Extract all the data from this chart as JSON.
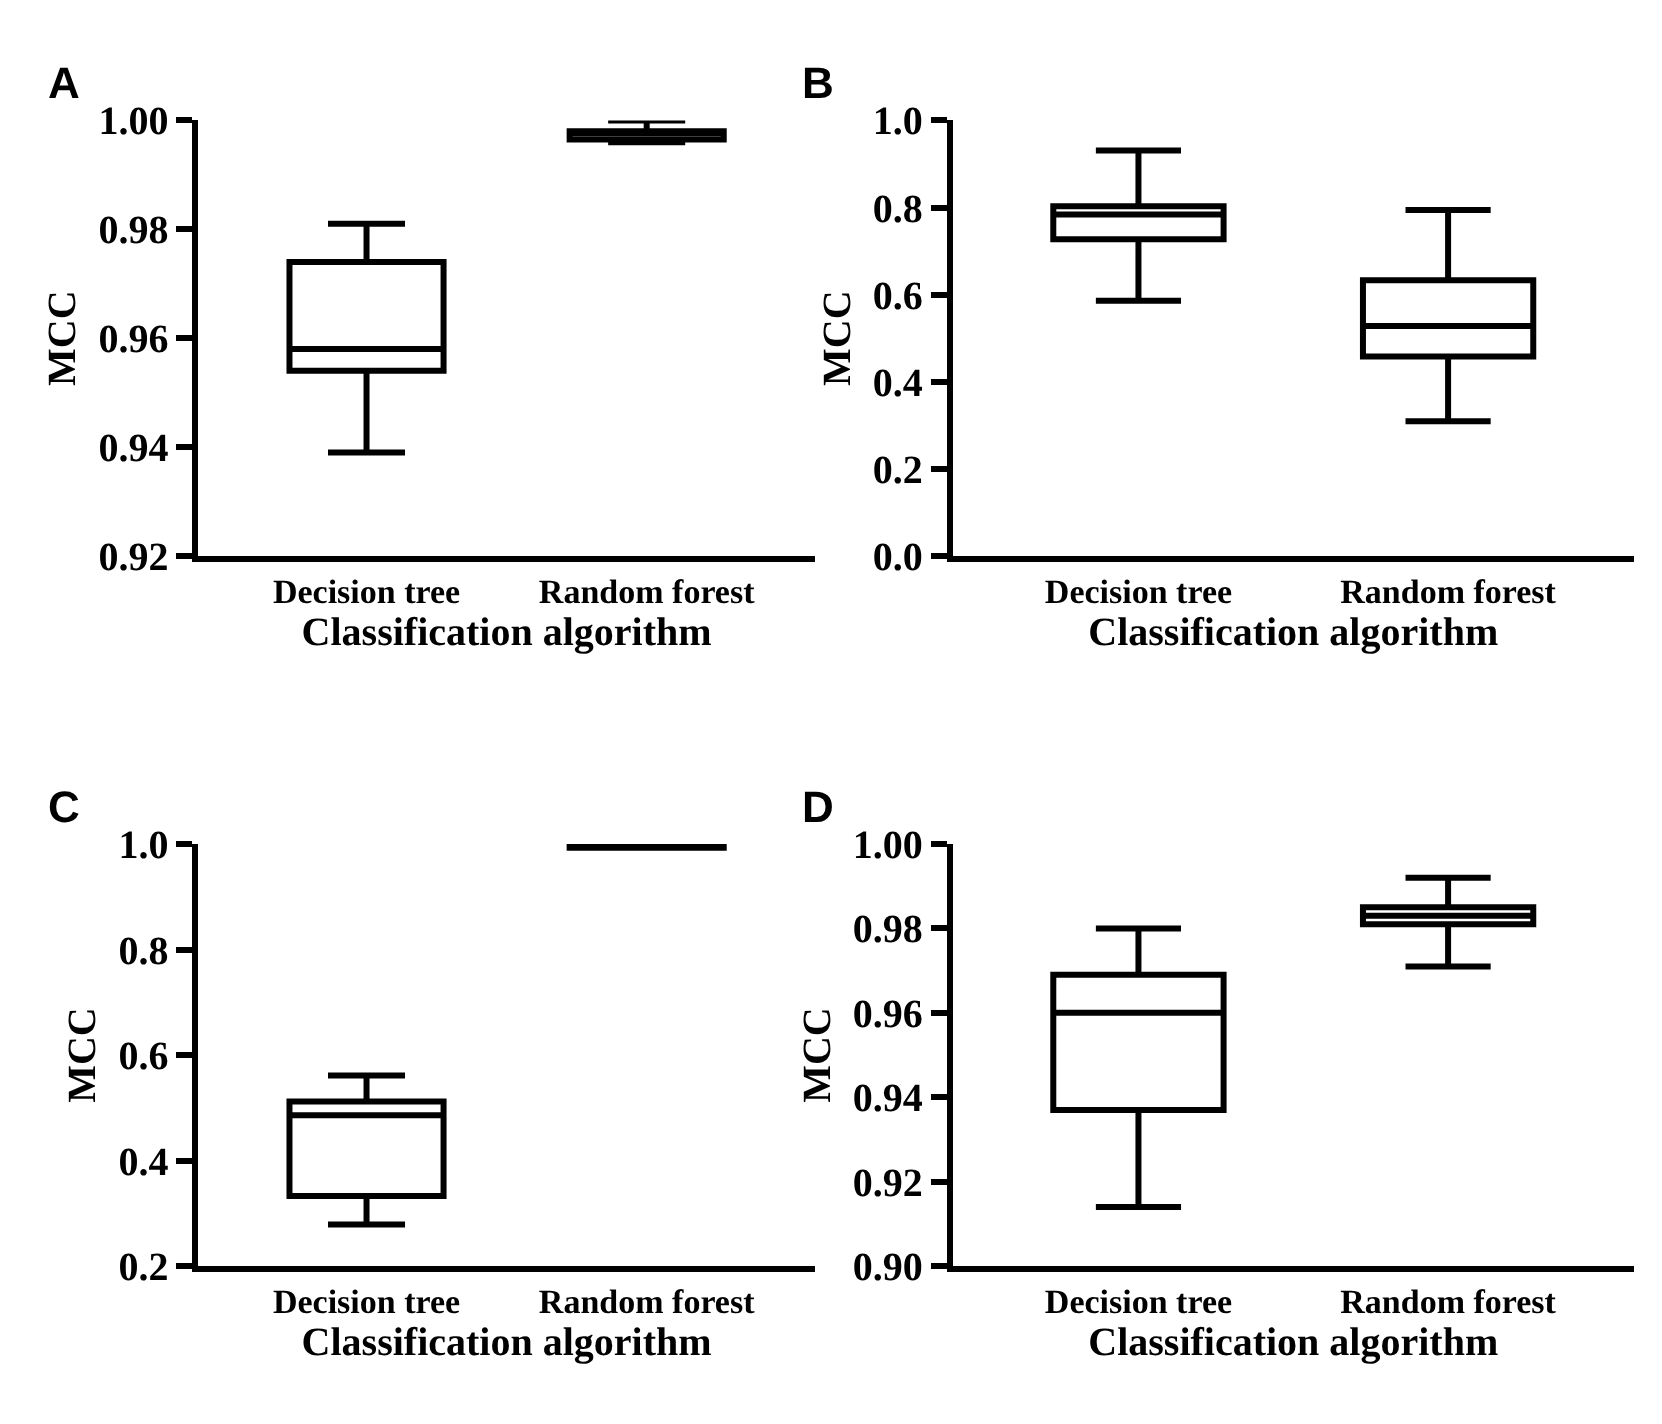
{
  "chart_data": [
    {
      "type": "box",
      "title": "A",
      "xlabel": "Classification algorithm",
      "ylabel": "MCC",
      "categories": [
        "Decision tree",
        "Random forest"
      ],
      "color": "#000000",
      "boxes": [
        {
          "low": 0.939,
          "q1": 0.954,
          "median": 0.958,
          "q3": 0.974,
          "high": 0.981
        },
        {
          "low": 0.996,
          "q1": 0.9965,
          "median": 0.998,
          "q3": 0.998,
          "high": 1.0
        }
      ],
      "ylim": [
        0.92,
        1.0
      ],
      "yticks": [
        {
          "value": 0.92,
          "label": "0.92"
        },
        {
          "value": 0.94,
          "label": "0.94"
        },
        {
          "value": 0.96,
          "label": "0.96"
        },
        {
          "value": 0.98,
          "label": "0.98"
        },
        {
          "value": 1.0,
          "label": "1.00"
        }
      ]
    },
    {
      "type": "box",
      "title": "B",
      "xlabel": "Classification algorithm",
      "ylabel": "MCC",
      "categories": [
        "Decision tree",
        "Random forest"
      ],
      "color": "#000000",
      "boxes": [
        {
          "low": 0.586,
          "q1": 0.727,
          "median": 0.784,
          "q3": 0.803,
          "high": 0.931
        },
        {
          "low": 0.309,
          "q1": 0.458,
          "median": 0.528,
          "q3": 0.633,
          "high": 0.794
        }
      ],
      "ylim": [
        0.0,
        1.0
      ],
      "yticks": [
        {
          "value": 0.0,
          "label": "0.0"
        },
        {
          "value": 0.2,
          "label": "0.2"
        },
        {
          "value": 0.4,
          "label": "0.4"
        },
        {
          "value": 0.6,
          "label": "0.6"
        },
        {
          "value": 0.8,
          "label": "0.8"
        },
        {
          "value": 1.0,
          "label": "1.0"
        }
      ]
    },
    {
      "type": "box",
      "title": "C",
      "xlabel": "Classification algorithm",
      "ylabel": "MCC",
      "categories": [
        "Decision tree",
        "Random forest"
      ],
      "color": "#000000",
      "boxes": [
        {
          "low": 0.279,
          "q1": 0.333,
          "median": 0.486,
          "q3": 0.512,
          "high": 0.561
        },
        {
          "low": 0.993,
          "q1": 0.993,
          "median": 0.994,
          "q3": 0.995,
          "high": 0.995
        }
      ],
      "ylim": [
        0.2,
        1.0
      ],
      "yticks": [
        {
          "value": 0.2,
          "label": "0.2"
        },
        {
          "value": 0.4,
          "label": "0.4"
        },
        {
          "value": 0.6,
          "label": "0.6"
        },
        {
          "value": 0.8,
          "label": "0.8"
        },
        {
          "value": 1.0,
          "label": "1.0"
        }
      ]
    },
    {
      "type": "box",
      "title": "D",
      "xlabel": "Classification algorithm",
      "ylabel": "MCC",
      "categories": [
        "Decision tree",
        "Random forest"
      ],
      "color": "#000000",
      "boxes": [
        {
          "low": 0.914,
          "q1": 0.937,
          "median": 0.96,
          "q3": 0.969,
          "high": 0.98
        },
        {
          "low": 0.971,
          "q1": 0.981,
          "median": 0.983,
          "q3": 0.985,
          "high": 0.992
        }
      ],
      "ylim": [
        0.9,
        1.0
      ],
      "yticks": [
        {
          "value": 0.9,
          "label": "0.90"
        },
        {
          "value": 0.92,
          "label": "0.92"
        },
        {
          "value": 0.94,
          "label": "0.94"
        },
        {
          "value": 0.96,
          "label": "0.96"
        },
        {
          "value": 0.98,
          "label": "0.98"
        },
        {
          "value": 1.0,
          "label": "1.00"
        }
      ]
    }
  ]
}
